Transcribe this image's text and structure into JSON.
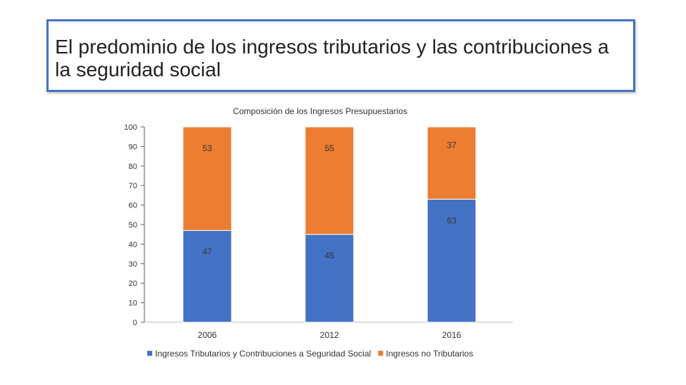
{
  "slide": {
    "title": "El predominio de los ingresos tributarios y las contribuciones a la seguridad social"
  },
  "colors": {
    "series1": "#4472c4",
    "series2": "#ed7d31",
    "frame": "#4472c4"
  },
  "chart_data": {
    "type": "bar",
    "stacked": true,
    "title": "Composición de los Ingresos Presupuestarios",
    "categories": [
      "2006",
      "2012",
      "2016"
    ],
    "series": [
      {
        "name": "Ingresos Tributarios y Contribuciones a Seguridad Social",
        "values": [
          47,
          45,
          63
        ]
      },
      {
        "name": "Ingresos no Tributarios",
        "values": [
          53,
          55,
          37
        ]
      }
    ],
    "ylim": [
      0,
      100
    ],
    "yticks": [
      "0",
      "10",
      "20",
      "30",
      "40",
      "50",
      "60",
      "70",
      "80",
      "90",
      "100"
    ],
    "legend_position": "bottom"
  }
}
